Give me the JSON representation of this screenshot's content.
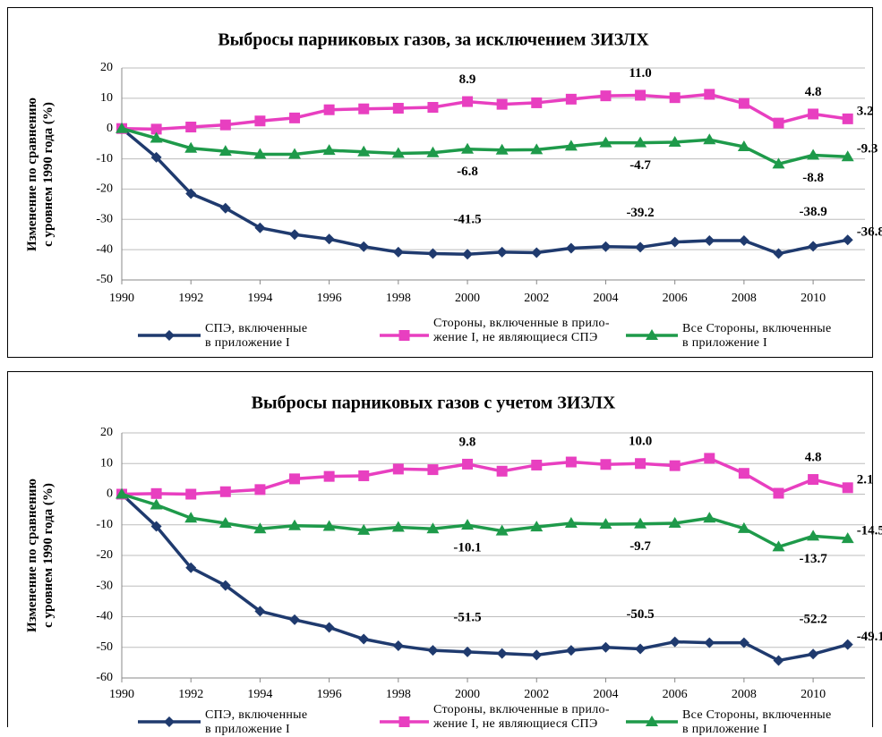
{
  "chart_data": [
    {
      "type": "line",
      "title": "Выбросы парниковых газов, за исключением ЗИЗЛХ",
      "ylabel": "Изменение по сравнению\nс уровнем 1990 года (%)",
      "x": [
        1990,
        1991,
        1992,
        1993,
        1994,
        1995,
        1996,
        1997,
        1998,
        1999,
        2000,
        2001,
        2002,
        2003,
        2004,
        2005,
        2006,
        2007,
        2008,
        2009,
        2010,
        2011
      ],
      "xlim": [
        1990,
        2011.5
      ],
      "xticks": [
        1990,
        1992,
        1994,
        1996,
        1998,
        2000,
        2002,
        2004,
        2006,
        2008,
        2010
      ],
      "ylim": [
        -50,
        20
      ],
      "yticks": [
        -50,
        -40,
        -30,
        -20,
        -10,
        0,
        10,
        20
      ],
      "grid": true,
      "series": [
        {
          "name": "СПЭ, включенные\nв приложение I",
          "color": "#1f3a6e",
          "marker": "diamond",
          "values": [
            0,
            -9.5,
            -21.5,
            -26.3,
            -32.8,
            -35,
            -36.5,
            -39,
            -40.8,
            -41.3,
            -41.5,
            -40.8,
            -41,
            -39.5,
            -39,
            -39.2,
            -37.5,
            -37,
            -37,
            -41.3,
            -38.9,
            -36.8
          ],
          "value_labels": [
            null,
            null,
            null,
            null,
            null,
            null,
            null,
            null,
            null,
            null,
            "-41.5",
            null,
            null,
            null,
            null,
            "-39.2",
            null,
            null,
            null,
            null,
            "-38.9",
            "-36.8"
          ]
        },
        {
          "name": "Стороны, включенные в прило-\nжение I, не являющиеся СПЭ",
          "color": "#e83fc0",
          "marker": "square",
          "values": [
            0,
            -0.2,
            0.5,
            1.2,
            2.5,
            3.5,
            6.2,
            6.5,
            6.7,
            7,
            8.9,
            8,
            8.5,
            9.7,
            10.8,
            11.0,
            10.2,
            11.3,
            8.3,
            1.8,
            4.8,
            3.2
          ],
          "value_labels": [
            null,
            null,
            null,
            null,
            null,
            null,
            null,
            null,
            null,
            null,
            "8.9",
            null,
            null,
            null,
            null,
            "11.0",
            null,
            null,
            null,
            null,
            "4.8",
            "3.2"
          ]
        },
        {
          "name": "Все Стороны, включенные\nв приложение I",
          "color": "#1e9a4a",
          "marker": "triangle",
          "values": [
            0,
            -3.2,
            -6.5,
            -7.5,
            -8.5,
            -8.5,
            -7.2,
            -7.7,
            -8.2,
            -8,
            -6.8,
            -7.1,
            -7,
            -5.8,
            -4.7,
            -4.7,
            -4.5,
            -3.7,
            -6,
            -11.7,
            -8.8,
            -9.3
          ],
          "value_labels": [
            null,
            null,
            null,
            null,
            null,
            null,
            null,
            null,
            null,
            null,
            "-6.8",
            null,
            null,
            null,
            null,
            "-4.7",
            null,
            null,
            null,
            null,
            "-8.8",
            "-9.3"
          ]
        }
      ]
    },
    {
      "type": "line",
      "title": "Выбросы парниковых газов с учетом ЗИЗЛХ",
      "ylabel": "Изменение по сравнению\nс уровнем 1990 года (%)",
      "x": [
        1990,
        1991,
        1992,
        1993,
        1994,
        1995,
        1996,
        1997,
        1998,
        1999,
        2000,
        2001,
        2002,
        2003,
        2004,
        2005,
        2006,
        2007,
        2008,
        2009,
        2010,
        2011
      ],
      "xlim": [
        1990,
        2011.5
      ],
      "xticks": [
        1990,
        1992,
        1994,
        1996,
        1998,
        2000,
        2002,
        2004,
        2006,
        2008,
        2010
      ],
      "ylim": [
        -60,
        20
      ],
      "yticks": [
        -60,
        -50,
        -40,
        -30,
        -20,
        -10,
        0,
        10,
        20
      ],
      "grid": true,
      "series": [
        {
          "name": "СПЭ, включенные\nв приложение I",
          "color": "#1f3a6e",
          "marker": "diamond",
          "values": [
            0,
            -10.5,
            -24,
            -29.8,
            -38.2,
            -41,
            -43.5,
            -47.3,
            -49.5,
            -51,
            -51.5,
            -52,
            -52.5,
            -51,
            -50,
            -50.5,
            -48.2,
            -48.5,
            -48.5,
            -54.3,
            -52.2,
            -49.1
          ],
          "value_labels": [
            null,
            null,
            null,
            null,
            null,
            null,
            null,
            null,
            null,
            null,
            "-51.5",
            null,
            null,
            null,
            null,
            "-50.5",
            null,
            null,
            null,
            null,
            "-52.2",
            "-49.1"
          ]
        },
        {
          "name": "Стороны, включенные в прило-\nжение I, не являющиеся СПЭ",
          "color": "#e83fc0",
          "marker": "square",
          "values": [
            0,
            0.2,
            0,
            0.8,
            1.5,
            5,
            5.8,
            6,
            8.2,
            8,
            9.8,
            7.5,
            9.5,
            10.5,
            9.7,
            10.0,
            9.3,
            11.7,
            6.8,
            0.3,
            4.8,
            2.1
          ],
          "value_labels": [
            null,
            null,
            null,
            null,
            null,
            null,
            null,
            null,
            null,
            null,
            "9.8",
            null,
            null,
            null,
            null,
            "10.0",
            null,
            null,
            null,
            null,
            "4.8",
            "2.1"
          ]
        },
        {
          "name": "Все Стороны, включенные\nв приложение I",
          "color": "#1e9a4a",
          "marker": "triangle",
          "values": [
            0,
            -3.5,
            -7.8,
            -9.5,
            -11.3,
            -10.3,
            -10.5,
            -11.8,
            -10.8,
            -11.3,
            -10.1,
            -12,
            -10.7,
            -9.5,
            -9.8,
            -9.7,
            -9.5,
            -7.8,
            -11.2,
            -17.2,
            -13.7,
            -14.5
          ],
          "value_labels": [
            null,
            null,
            null,
            null,
            null,
            null,
            null,
            null,
            null,
            null,
            "-10.1",
            null,
            null,
            null,
            null,
            "-9.7",
            null,
            null,
            null,
            null,
            "-13.7",
            "-14.5"
          ]
        }
      ]
    }
  ]
}
